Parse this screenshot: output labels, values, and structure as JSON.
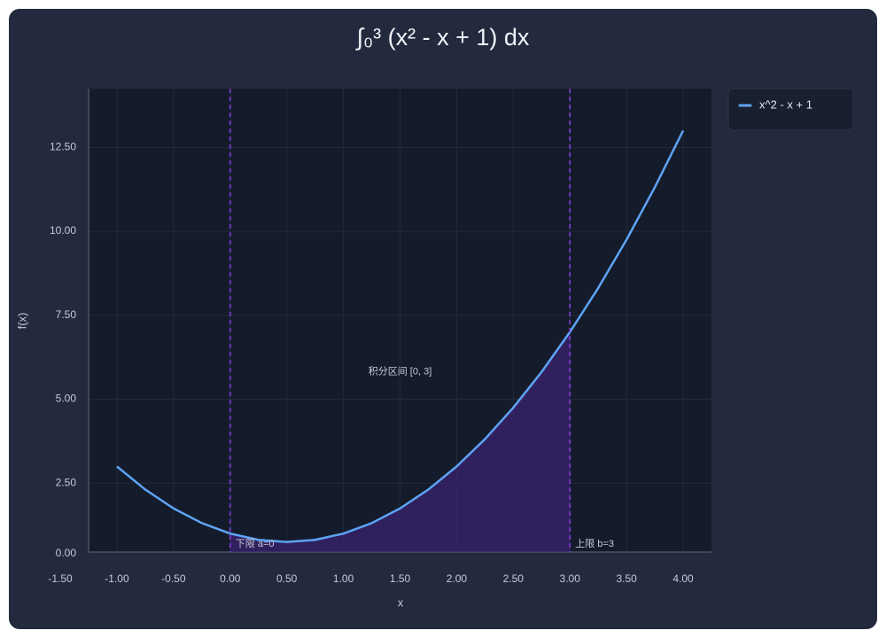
{
  "chart_data": {
    "type": "line",
    "title": "∫₀³ (x² - x + 1) dx",
    "x_label": "x",
    "y_label": "f(x)",
    "x": [
      -1,
      -0.75,
      -0.5,
      -0.25,
      0,
      0.25,
      0.5,
      0.75,
      1,
      1.25,
      1.5,
      1.75,
      2,
      2.25,
      2.5,
      2.75,
      3,
      3.25,
      3.5,
      3.75,
      4
    ],
    "series": [
      {
        "name": "x^2 - x + 1",
        "color": "#5ea3f5",
        "values": [
          3,
          2.3125,
          1.75,
          1.3125,
          1,
          0.8125,
          0.75,
          0.8125,
          1,
          1.3125,
          1.75,
          2.3125,
          3,
          3.8125,
          4.75,
          5.8125,
          7,
          8.3125,
          9.75,
          11.3125,
          13
        ]
      }
    ],
    "bounds": [
      {
        "value": 0,
        "label": "下限 a=0"
      },
      {
        "value": 3,
        "label": "上限 b=3"
      }
    ],
    "bound_color": "#8a3ee0",
    "fill_color": "#3a2470",
    "annotation": "积分区间 [0, 3]",
    "xlim": [
      -1.25,
      4.25
    ],
    "ylim": [
      0.45,
      14.25
    ],
    "xticks": [
      {
        "value": -1.5,
        "label": "-1.50"
      },
      {
        "value": -1,
        "label": "-1.00"
      },
      {
        "value": -0.5,
        "label": "-0.50"
      },
      {
        "value": 0,
        "label": "0.00"
      },
      {
        "value": 0.5,
        "label": "0.50"
      },
      {
        "value": 1,
        "label": "1.00"
      },
      {
        "value": 1.5,
        "label": "1.50"
      },
      {
        "value": 2,
        "label": "2.00"
      },
      {
        "value": 2.5,
        "label": "2.50"
      },
      {
        "value": 3,
        "label": "3.00"
      },
      {
        "value": 3.5,
        "label": "3.50"
      },
      {
        "value": 4,
        "label": "4.00"
      }
    ],
    "yticks": [
      {
        "value": 0,
        "label": "0.00"
      },
      {
        "value": 2.5,
        "label": "2.50"
      },
      {
        "value": 5,
        "label": "5.00"
      },
      {
        "value": 7.5,
        "label": "7.50"
      },
      {
        "value": 10,
        "label": "10.00"
      },
      {
        "value": 12.5,
        "label": "12.50"
      }
    ],
    "grid": true,
    "legend": "right"
  }
}
